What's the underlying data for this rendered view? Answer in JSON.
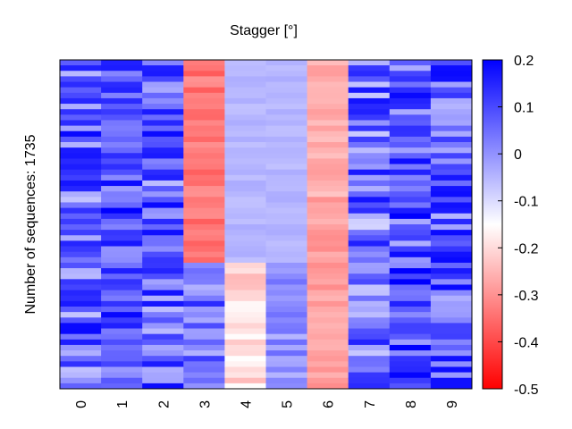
{
  "chart_data": {
    "type": "heatmap",
    "title": "Stagger [°]",
    "ylabel": "Number of sequences: 1735",
    "xlabel": "",
    "columns": [
      "0",
      "1",
      "2",
      "3",
      "4",
      "5",
      "6",
      "7",
      "8",
      "9"
    ],
    "colorbar": {
      "min": -0.5,
      "max": 0.2,
      "ticks": [
        "0.2",
        "0.1",
        "0",
        "-0.1",
        "-0.2",
        "-0.3",
        "-0.4",
        "-0.5"
      ],
      "colors": {
        "low": "#ff0000",
        "mid": "#ffffff",
        "high": "#0000ff"
      },
      "white_at": -0.15
    },
    "column_profiles": [
      {
        "column": "0",
        "base": 0.06,
        "spread": 0.13
      },
      {
        "column": "1",
        "base": 0.09,
        "spread": 0.11
      },
      {
        "column": "2",
        "base": 0.07,
        "spread": 0.13
      },
      {
        "column": "3",
        "segments": [
          {
            "from": 0.0,
            "to": 0.62,
            "base": -0.34,
            "spread": 0.04
          },
          {
            "from": 0.62,
            "to": 1.0,
            "base": 0.05,
            "spread": 0.1
          }
        ]
      },
      {
        "column": "4",
        "segments": [
          {
            "from": 0.0,
            "to": 0.62,
            "base": -0.05,
            "spread": 0.015
          },
          {
            "from": 0.62,
            "to": 1.0,
            "base": -0.2,
            "spread": 0.05
          }
        ]
      },
      {
        "column": "5",
        "segments": [
          {
            "from": 0.0,
            "to": 0.62,
            "base": -0.05,
            "spread": 0.015
          },
          {
            "from": 0.62,
            "to": 1.0,
            "base": 0.0,
            "spread": 0.05
          }
        ]
      },
      {
        "column": "6",
        "segments": [
          {
            "from": 0.0,
            "to": 0.42,
            "base": -0.26,
            "spread": 0.03
          },
          {
            "from": 0.42,
            "to": 1.0,
            "base": -0.28,
            "spread": 0.03
          }
        ]
      },
      {
        "column": "7",
        "base": 0.04,
        "spread": 0.14
      },
      {
        "column": "8",
        "base": 0.09,
        "spread": 0.13
      },
      {
        "column": "9",
        "base": 0.07,
        "spread": 0.12
      }
    ]
  }
}
